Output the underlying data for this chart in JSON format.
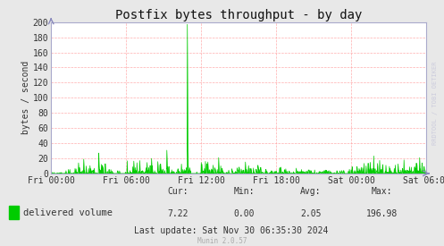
{
  "title": "Postfix bytes throughput - by day",
  "ylabel": "bytes / second",
  "bg_color": "#e8e8e8",
  "plot_bg_color": "#ffffff",
  "grid_color": "#ff9999",
  "line_color": "#00cc00",
  "fill_color": "#00cc00",
  "x_tick_labels": [
    "Fri 00:00",
    "Fri 06:00",
    "Fri 12:00",
    "Fri 18:00",
    "Sat 00:00",
    "Sat 06:00"
  ],
  "x_tick_positions": [
    0,
    6,
    12,
    18,
    24,
    30
  ],
  "ylim": [
    0,
    200
  ],
  "yticks": [
    0,
    20,
    40,
    60,
    80,
    100,
    120,
    140,
    160,
    180,
    200
  ],
  "legend_label": "delivered volume",
  "cur_label": "Cur:",
  "min_label": "Min:",
  "avg_label": "Avg:",
  "max_label": "Max:",
  "cur": "7.22",
  "min": "0.00",
  "avg": "2.05",
  "max": "196.98",
  "last_update": "Last update: Sat Nov 30 06:35:30 2024",
  "munin_version": "Munin 2.0.57",
  "rrdtool_label": "RRDTOOL / TOBI OETIKER",
  "title_fontsize": 10,
  "axis_fontsize": 7,
  "legend_fontsize": 7.5,
  "stats_fontsize": 7,
  "watermark_fontsize": 5,
  "munin_fontsize": 5.5
}
